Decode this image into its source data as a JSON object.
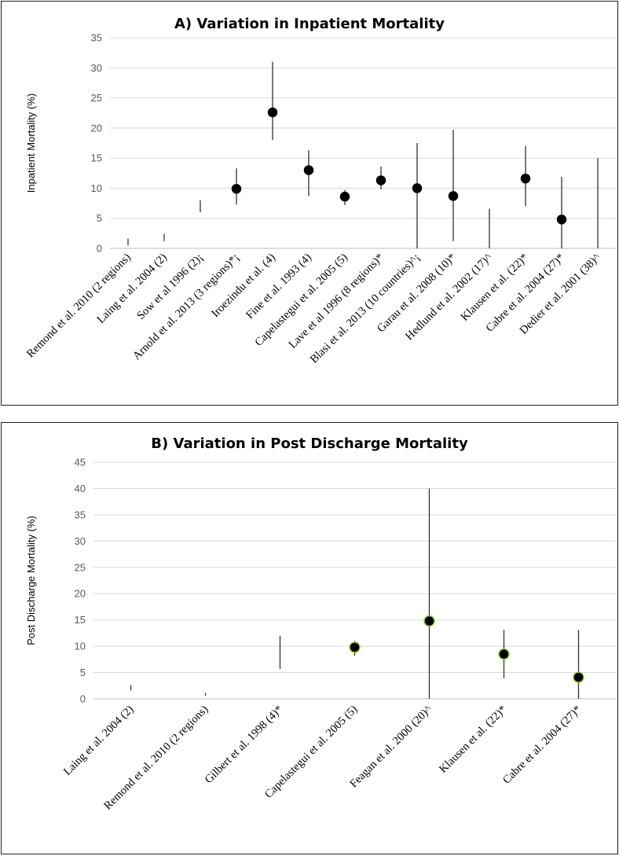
{
  "charts": [
    {
      "title": "A) Variation in Inpatient Mortality",
      "ylabel": "Inpatient Mortality (%)",
      "type": "scatter",
      "ylim": [
        0,
        35
      ],
      "yticks": [
        0,
        5,
        10,
        15,
        20,
        25,
        30,
        35
      ],
      "grid": true,
      "marker_color": "#000000",
      "marker_edge": "#000000",
      "categories": [
        "Remond et al. 2010 (2 regions)",
        "Laing et al. 2004 (2)",
        "Sow et al 1996 (2)¡",
        "Arnold et al. 2013 (3 regions)*¡",
        "Iroezindu et al. (4)",
        "Fine et al. 1993 (4)",
        "Capelastegui et al. 2005 (5)",
        "Lave et al 1996 (8 regions)*",
        "Blasi et al. 2013 (10 countries)^¡",
        "Garau et al. 2008 (10)*",
        "Hedlund et al. 2002 (17)^",
        "Klausen et al. (22)*",
        "Cabre et al. 2004 (27)*",
        "Dedier et al. 2001 (38)^"
      ],
      "values": [
        null,
        null,
        null,
        9.9,
        22.6,
        13.0,
        8.6,
        11.3,
        10.0,
        8.7,
        null,
        11.6,
        4.8,
        null
      ],
      "range_low": [
        0.5,
        1.2,
        6.0,
        7.3,
        18.0,
        8.7,
        7.2,
        9.8,
        0.0,
        1.2,
        0.0,
        7.0,
        0.0,
        0.0
      ],
      "range_high": [
        1.6,
        2.4,
        8.0,
        13.3,
        31.0,
        16.3,
        9.7,
        13.6,
        17.5,
        19.7,
        6.6,
        17.0,
        11.9,
        15.0
      ]
    },
    {
      "title": "B) Variation in Post Discharge Mortality",
      "ylabel": "Post Discharge Mortality (%)",
      "type": "scatter",
      "ylim": [
        0,
        45
      ],
      "yticks": [
        0,
        5,
        10,
        15,
        20,
        25,
        30,
        35,
        40,
        45
      ],
      "grid": true,
      "marker_color": "#000000",
      "marker_edge": "#9acd32",
      "categories": [
        "Laing et al. 2004 (2)",
        "Remond et al. 2010 (2 regions)",
        "Gilbert et al. 1998 (4)*",
        "Capelastegui et al. 2005 (5)",
        "Feagan et al. 2000 (20)^",
        "Klausen et al. (22)*",
        "Cabre et al. 2004 (27)*"
      ],
      "values": [
        null,
        null,
        null,
        9.8,
        14.8,
        8.5,
        4.1
      ],
      "range_low": [
        1.6,
        0.6,
        5.7,
        8.2,
        0.0,
        3.9,
        0.0
      ],
      "range_high": [
        2.6,
        1.1,
        12.0,
        11.0,
        40.0,
        13.1,
        13.1
      ]
    }
  ]
}
